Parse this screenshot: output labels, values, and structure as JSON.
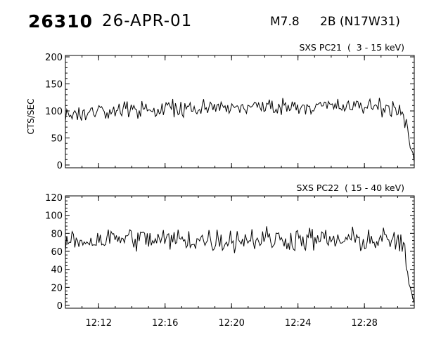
{
  "header": {
    "event_id": "26310",
    "date": "26-APR-01",
    "flare_class": "M7.8",
    "flare_location": "2B (N17W31)"
  },
  "colors": {
    "background": "#ffffff",
    "ink": "#000000"
  },
  "chart_data": [
    {
      "type": "line",
      "title": "SXS PC21  (  3 - 15 keV)",
      "ylabel": "CTS/SEC",
      "xlabel": "",
      "xlim": [
        "12:10",
        "12:31"
      ],
      "ylim": [
        0,
        200
      ],
      "yticks": [
        0,
        50,
        100,
        150,
        200
      ],
      "xtick_labels": [
        "12:12",
        "12:16",
        "12:20",
        "12:24",
        "12:28"
      ],
      "grid": false,
      "series": [
        {
          "x": [
            "12:10:00",
            "12:10:30",
            "12:11:00",
            "12:11:30",
            "12:12:00",
            "12:12:30",
            "12:13:00",
            "12:13:30",
            "12:14:00",
            "12:14:30",
            "12:15:00",
            "12:15:30",
            "12:16:00",
            "12:16:30",
            "12:17:00",
            "12:17:30",
            "12:18:00",
            "12:18:30",
            "12:19:00",
            "12:19:30",
            "12:20:00",
            "12:20:30",
            "12:21:00",
            "12:21:30",
            "12:22:00",
            "12:22:30",
            "12:23:00",
            "12:23:30",
            "12:24:00",
            "12:24:30",
            "12:25:00",
            "12:25:30",
            "12:26:00",
            "12:26:30",
            "12:27:00",
            "12:27:30",
            "12:28:00",
            "12:28:30",
            "12:29:00",
            "12:29:30",
            "12:30:00",
            "12:30:15",
            "12:30:30",
            "12:30:45",
            "12:31:00"
          ],
          "values": [
            94,
            96,
            97,
            98,
            99,
            98,
            100,
            101,
            102,
            101,
            103,
            102,
            104,
            103,
            103,
            104,
            105,
            104,
            105,
            106,
            106,
            107,
            108,
            107,
            108,
            109,
            108,
            109,
            110,
            109,
            108,
            109,
            108,
            107,
            108,
            107,
            108,
            109,
            108,
            106,
            104,
            98,
            75,
            35,
            5
          ],
          "noise_amplitude": 8
        }
      ]
    },
    {
      "type": "line",
      "title": "SXS PC22  ( 15 - 40 keV)",
      "ylabel": "",
      "xlabel": "",
      "xlim": [
        "12:10",
        "12:31"
      ],
      "ylim": [
        0,
        120
      ],
      "yticks": [
        0,
        20,
        40,
        60,
        80,
        100,
        120
      ],
      "xtick_labels": [
        "12:12",
        "12:16",
        "12:20",
        "12:24",
        "12:28"
      ],
      "grid": false,
      "series": [
        {
          "x": [
            "12:10:00",
            "12:11:00",
            "12:12:00",
            "12:13:00",
            "12:14:00",
            "12:15:00",
            "12:16:00",
            "12:17:00",
            "12:18:00",
            "12:19:00",
            "12:20:00",
            "12:21:00",
            "12:22:00",
            "12:23:00",
            "12:24:00",
            "12:25:00",
            "12:26:00",
            "12:27:00",
            "12:28:00",
            "12:29:00",
            "12:30:00",
            "12:30:20",
            "12:30:40",
            "12:31:00"
          ],
          "values": [
            71,
            72,
            73,
            74,
            75,
            73,
            72,
            73,
            73,
            72,
            73,
            74,
            74,
            73,
            74,
            73,
            72,
            72,
            73,
            72,
            72,
            65,
            25,
            2
          ],
          "noise_amplitude": 7
        }
      ]
    }
  ]
}
